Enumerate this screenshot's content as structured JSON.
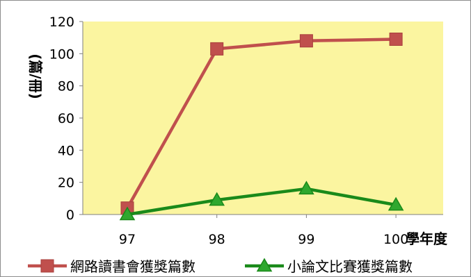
{
  "chart_data": {
    "type": "line",
    "categories": [
      "97",
      "98",
      "99",
      "100"
    ],
    "xlabel": "學年度",
    "ylabel": "(篇/冊)",
    "ylim": [
      0,
      120
    ],
    "yticks": [
      0,
      20,
      40,
      60,
      80,
      100,
      120
    ],
    "grid": false,
    "legend_position": "bottom",
    "series": [
      {
        "name": "網路讀書會獲獎篇數",
        "values": [
          4,
          103,
          108,
          109
        ],
        "color": "#c0504d",
        "marker": "square"
      },
      {
        "name": "小論文比賽獲獎篇數",
        "values": [
          0,
          9,
          16,
          6
        ],
        "color": "#1a8a1a",
        "marker_fill": "#2fa82f",
        "marker": "triangle"
      }
    ],
    "plot_background": "#fbf5a0",
    "axis_color": "#7f7f7f"
  }
}
